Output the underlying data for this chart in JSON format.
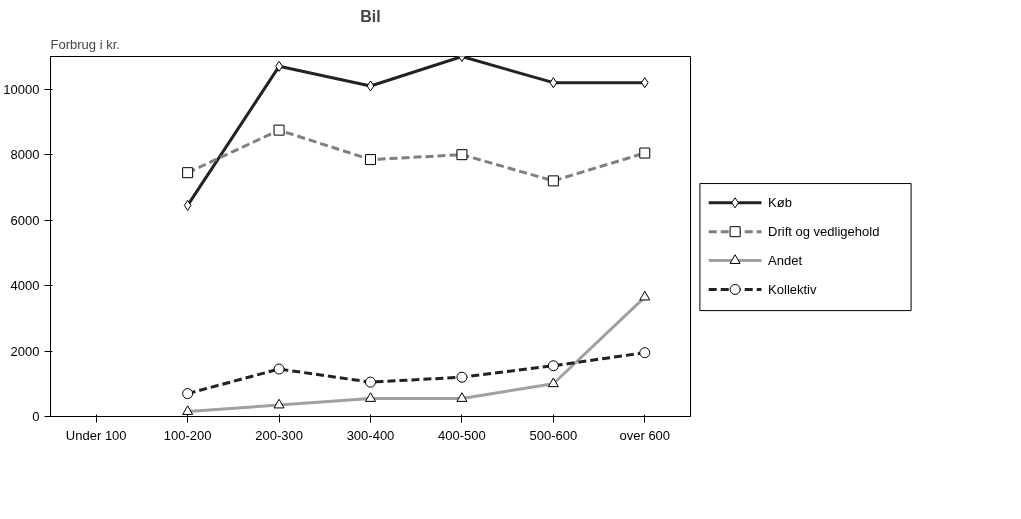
{
  "chart_data": {
    "type": "line",
    "title": "Bil",
    "ylabel": "Forbrug i kr.",
    "categories": [
      "Under 100",
      "100-200",
      "200-300",
      "300-400",
      "400-500",
      "500-600",
      "over 600"
    ],
    "ylim": [
      0,
      11000
    ],
    "yticks": [
      0,
      2000,
      4000,
      6000,
      8000,
      10000
    ],
    "grid": false,
    "legend": "right",
    "series": [
      {
        "name": "Køb",
        "color": "#222222",
        "marker": "diamond",
        "line_style": "solid",
        "values": [
          null,
          6450,
          10700,
          10100,
          11000,
          10200,
          10200
        ]
      },
      {
        "name": "Drift og vedligehold",
        "color": "#808080",
        "marker": "square",
        "line_style": "dashed",
        "values": [
          null,
          7450,
          8750,
          7850,
          8000,
          7200,
          8050
        ]
      },
      {
        "name": "Andet",
        "color": "#a0a0a0",
        "marker": "triangle",
        "line_style": "solid",
        "values": [
          null,
          150,
          350,
          550,
          550,
          1000,
          3650
        ]
      },
      {
        "name": "Kollektiv",
        "color": "#222222",
        "marker": "circle",
        "line_style": "dashed",
        "values": [
          null,
          700,
          1450,
          1050,
          1200,
          1550,
          1950
        ]
      }
    ]
  }
}
